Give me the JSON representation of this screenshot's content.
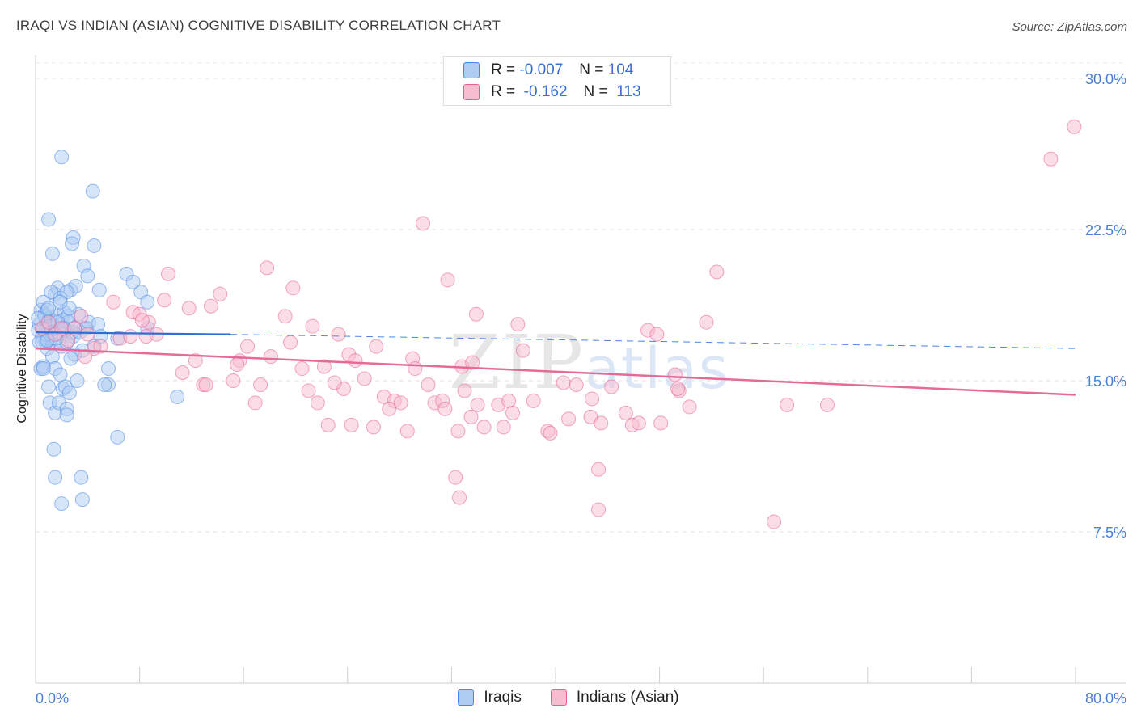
{
  "title": "IRAQI VS INDIAN (ASIAN) COGNITIVE DISABILITY CORRELATION CHART",
  "source": "Source: ZipAtlas.com",
  "watermark": {
    "zip": "ZIP",
    "atlas": "atlas"
  },
  "legend": {
    "rows": [
      {
        "r_label": "R =",
        "r_value": "-0.007",
        "n_label": "N =",
        "n_value": "104",
        "color": "#aecbf2"
      },
      {
        "r_label": "R =",
        "r_value": "-0.162",
        "n_label": "N =",
        "n_value": "113",
        "color": "#f6bcd0"
      }
    ]
  },
  "bottom_legend": {
    "iraqis": {
      "label": "Iraqis",
      "color": "#aecbf2"
    },
    "indians": {
      "label": "Indians (Asian)",
      "color": "#f6bcd0"
    }
  },
  "chart_data": {
    "type": "scatter",
    "title": "IRAQI VS INDIAN (ASIAN) COGNITIVE DISABILITY CORRELATION CHART",
    "xlabel": "",
    "ylabel": "Cognitive Disability",
    "xlim": [
      0,
      80
    ],
    "ylim": [
      0,
      31
    ],
    "x_tick_labels": [
      "0.0%",
      "80.0%"
    ],
    "y_ticks": [
      7.5,
      15.0,
      22.5,
      30.0
    ],
    "y_tick_labels": [
      "7.5%",
      "15.0%",
      "22.5%",
      "30.0%"
    ],
    "grid": true,
    "legend_position": "top-center",
    "series": [
      {
        "name": "Iraqis",
        "color": "#4a86e8",
        "fill": "#aecbf2",
        "trend": {
          "x": [
            0,
            15
          ],
          "y": [
            17.4,
            17.3
          ],
          "dashed_extension_to": [
            80,
            16.6
          ]
        },
        "points": [
          [
            0.3,
            17.8
          ],
          [
            0.4,
            18.5
          ],
          [
            0.5,
            17.2
          ],
          [
            0.6,
            18.9
          ],
          [
            0.7,
            18.3
          ],
          [
            0.8,
            17.5
          ],
          [
            0.9,
            16.6
          ],
          [
            1.0,
            17.9
          ],
          [
            1.1,
            18.1
          ],
          [
            1.2,
            17.6
          ],
          [
            0.4,
            15.6
          ],
          [
            0.6,
            15.7
          ],
          [
            0.8,
            16.9
          ],
          [
            1.0,
            17.1
          ],
          [
            1.2,
            18.0
          ],
          [
            1.4,
            17.3
          ],
          [
            1.6,
            18.2
          ],
          [
            1.8,
            17.0
          ],
          [
            2.0,
            17.8
          ],
          [
            2.2,
            18.4
          ],
          [
            1.5,
            19.3
          ],
          [
            1.7,
            19.6
          ],
          [
            1.9,
            19.1
          ],
          [
            2.1,
            18.0
          ],
          [
            2.3,
            17.5
          ],
          [
            2.5,
            17.9
          ],
          [
            2.7,
            19.5
          ],
          [
            2.9,
            17.2
          ],
          [
            3.1,
            19.7
          ],
          [
            3.3,
            18.3
          ],
          [
            1.3,
            16.2
          ],
          [
            1.5,
            15.6
          ],
          [
            1.9,
            15.3
          ],
          [
            2.1,
            14.6
          ],
          [
            2.3,
            14.7
          ],
          [
            2.6,
            14.4
          ],
          [
            3.2,
            15.0
          ],
          [
            2.0,
            16.7
          ],
          [
            2.4,
            16.9
          ],
          [
            2.8,
            17.4
          ],
          [
            1.1,
            13.9
          ],
          [
            1.5,
            13.4
          ],
          [
            1.8,
            13.9
          ],
          [
            2.4,
            13.6
          ],
          [
            2.4,
            13.3
          ],
          [
            1.4,
            11.6
          ],
          [
            1.5,
            10.2
          ],
          [
            3.5,
            10.2
          ],
          [
            2.0,
            8.9
          ],
          [
            3.6,
            9.1
          ],
          [
            1.0,
            23.0
          ],
          [
            1.3,
            21.3
          ],
          [
            2.9,
            22.1
          ],
          [
            2.8,
            21.8
          ],
          [
            4.5,
            21.7
          ],
          [
            3.7,
            20.7
          ],
          [
            4.0,
            20.2
          ],
          [
            4.9,
            19.5
          ],
          [
            2.0,
            26.1
          ],
          [
            4.4,
            24.4
          ],
          [
            7.0,
            20.3
          ],
          [
            7.5,
            19.9
          ],
          [
            8.1,
            19.4
          ],
          [
            8.6,
            18.9
          ],
          [
            8.6,
            17.6
          ],
          [
            3.4,
            17.4
          ],
          [
            3.7,
            17.6
          ],
          [
            4.1,
            17.9
          ],
          [
            4.8,
            17.8
          ],
          [
            5.0,
            17.2
          ],
          [
            4.5,
            16.7
          ],
          [
            3.6,
            16.5
          ],
          [
            5.6,
            14.8
          ],
          [
            5.3,
            14.8
          ],
          [
            5.6,
            15.6
          ],
          [
            6.3,
            17.1
          ],
          [
            6.3,
            12.2
          ],
          [
            10.9,
            14.2
          ],
          [
            3.0,
            16.3
          ],
          [
            2.5,
            18.2
          ],
          [
            0.6,
            17.6
          ],
          [
            0.7,
            18.2
          ],
          [
            0.9,
            18.5
          ],
          [
            1.1,
            17.7
          ],
          [
            1.3,
            17.4
          ],
          [
            1.6,
            17.1
          ],
          [
            1.7,
            17.9
          ],
          [
            0.5,
            16.9
          ],
          [
            0.8,
            17.3
          ],
          [
            1.0,
            18.6
          ],
          [
            2.2,
            17.6
          ],
          [
            2.6,
            18.6
          ],
          [
            3.0,
            17.6
          ],
          [
            1.2,
            19.4
          ],
          [
            2.4,
            19.4
          ],
          [
            1.9,
            18.9
          ],
          [
            0.3,
            16.9
          ],
          [
            0.2,
            17.5
          ],
          [
            0.6,
            15.6
          ],
          [
            1.0,
            14.7
          ],
          [
            2.7,
            16.1
          ],
          [
            3.9,
            17.6
          ],
          [
            0.2,
            18.1
          ],
          [
            0.9,
            17.0
          ]
        ]
      },
      {
        "name": "Indians (Asian)",
        "color": "#e75f92",
        "fill": "#f6bcd0",
        "trend": {
          "x": [
            0,
            80
          ],
          "y": [
            16.6,
            14.3
          ]
        },
        "points": [
          [
            0.5,
            17.6
          ],
          [
            1.0,
            17.9
          ],
          [
            1.5,
            17.3
          ],
          [
            2.0,
            17.6
          ],
          [
            2.5,
            17.0
          ],
          [
            3.0,
            17.6
          ],
          [
            3.5,
            18.2
          ],
          [
            4.0,
            17.3
          ],
          [
            4.5,
            16.6
          ],
          [
            5.0,
            16.7
          ],
          [
            3.8,
            16.2
          ],
          [
            6.0,
            18.9
          ],
          [
            6.5,
            17.1
          ],
          [
            7.3,
            17.2
          ],
          [
            7.5,
            18.4
          ],
          [
            8.0,
            18.3
          ],
          [
            8.5,
            17.2
          ],
          [
            8.7,
            17.9
          ],
          [
            9.3,
            17.3
          ],
          [
            8.2,
            18.0
          ],
          [
            10.2,
            20.3
          ],
          [
            9.9,
            19.0
          ],
          [
            11.8,
            18.6
          ],
          [
            12.3,
            16.0
          ],
          [
            11.3,
            15.4
          ],
          [
            12.9,
            14.8
          ],
          [
            13.1,
            14.8
          ],
          [
            13.5,
            18.7
          ],
          [
            14.2,
            19.3
          ],
          [
            15.2,
            15.0
          ],
          [
            15.7,
            16.0
          ],
          [
            15.5,
            15.8
          ],
          [
            16.3,
            16.7
          ],
          [
            17.8,
            20.6
          ],
          [
            17.3,
            14.8
          ],
          [
            18.1,
            16.2
          ],
          [
            19.2,
            18.2
          ],
          [
            19.6,
            16.9
          ],
          [
            20.5,
            15.6
          ],
          [
            21.3,
            17.7
          ],
          [
            19.8,
            19.6
          ],
          [
            21.0,
            14.5
          ],
          [
            21.7,
            13.9
          ],
          [
            22.2,
            15.7
          ],
          [
            23.7,
            14.6
          ],
          [
            24.1,
            16.3
          ],
          [
            23.3,
            17.3
          ],
          [
            24.6,
            16.0
          ],
          [
            25.3,
            15.1
          ],
          [
            26.2,
            16.7
          ],
          [
            26.8,
            14.2
          ],
          [
            27.6,
            14.0
          ],
          [
            28.1,
            13.9
          ],
          [
            29.0,
            16.1
          ],
          [
            30.2,
            14.8
          ],
          [
            30.7,
            13.9
          ],
          [
            31.3,
            14.0
          ],
          [
            32.8,
            15.7
          ],
          [
            33.0,
            14.5
          ],
          [
            34.0,
            13.8
          ],
          [
            29.2,
            15.6
          ],
          [
            27.2,
            13.6
          ],
          [
            26.0,
            12.7
          ],
          [
            28.6,
            12.5
          ],
          [
            31.5,
            13.6
          ],
          [
            32.5,
            12.5
          ],
          [
            33.5,
            13.2
          ],
          [
            34.5,
            12.7
          ],
          [
            22.5,
            12.8
          ],
          [
            24.3,
            12.8
          ],
          [
            29.8,
            22.8
          ],
          [
            31.7,
            20.0
          ],
          [
            33.6,
            15.9
          ],
          [
            33.9,
            18.3
          ],
          [
            35.6,
            13.8
          ],
          [
            36.4,
            14.0
          ],
          [
            36.0,
            12.7
          ],
          [
            37.1,
            17.8
          ],
          [
            37.5,
            16.5
          ],
          [
            38.3,
            14.0
          ],
          [
            36.7,
            13.4
          ],
          [
            39.4,
            12.5
          ],
          [
            39.6,
            12.4
          ],
          [
            40.6,
            14.9
          ],
          [
            41.0,
            13.1
          ],
          [
            41.6,
            14.8
          ],
          [
            42.8,
            14.1
          ],
          [
            42.7,
            13.2
          ],
          [
            43.5,
            12.9
          ],
          [
            44.3,
            14.7
          ],
          [
            43.3,
            10.6
          ],
          [
            43.3,
            8.6
          ],
          [
            45.4,
            13.4
          ],
          [
            45.9,
            12.8
          ],
          [
            46.4,
            12.9
          ],
          [
            47.1,
            17.5
          ],
          [
            47.8,
            17.3
          ],
          [
            48.1,
            12.9
          ],
          [
            49.2,
            15.3
          ],
          [
            49.5,
            14.5
          ],
          [
            50.3,
            13.7
          ],
          [
            51.6,
            17.9
          ],
          [
            49.4,
            14.6
          ],
          [
            57.8,
            13.8
          ],
          [
            60.9,
            13.8
          ],
          [
            56.8,
            8.0
          ],
          [
            52.4,
            20.4
          ],
          [
            32.3,
            10.2
          ],
          [
            32.6,
            9.2
          ],
          [
            23.0,
            14.9
          ],
          [
            16.9,
            13.9
          ],
          [
            78.1,
            26.0
          ],
          [
            79.9,
            27.6
          ]
        ]
      }
    ]
  }
}
